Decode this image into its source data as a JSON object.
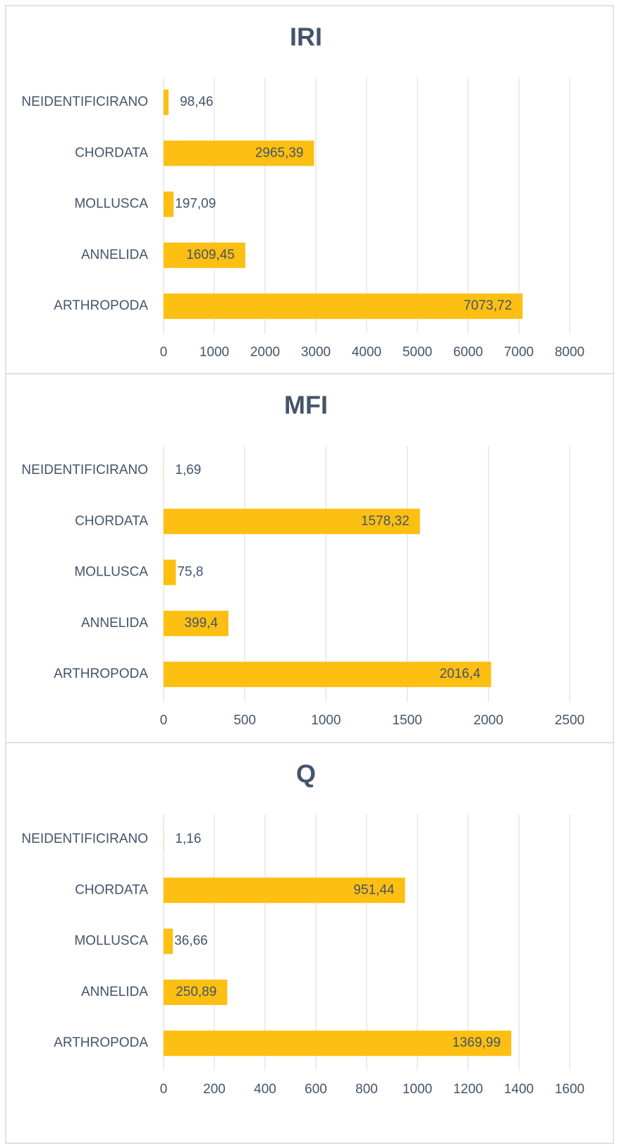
{
  "chart_data": [
    {
      "type": "bar",
      "orientation": "horizontal",
      "title": "IRI",
      "categories": [
        "NEIDENTIFICIRANO",
        "CHORDATA",
        "MOLLUSCA",
        "ANNELIDA",
        "ARTHROPODA"
      ],
      "values": [
        98.46,
        2965.39,
        197.09,
        1609.45,
        7073.72
      ],
      "value_labels": [
        "98,46",
        "2965,39",
        "197,09",
        "1609,45",
        "7073,72"
      ],
      "color": "#fcbf12",
      "xlim": [
        0,
        8000
      ],
      "xticks": [
        0,
        1000,
        2000,
        3000,
        4000,
        5000,
        6000,
        7000,
        8000
      ],
      "grid": true
    },
    {
      "type": "bar",
      "orientation": "horizontal",
      "title": "MFI",
      "categories": [
        "NEIDENTIFICIRANO",
        "CHORDATA",
        "MOLLUSCA",
        "ANNELIDA",
        "ARTHROPODA"
      ],
      "values": [
        1.69,
        1578.32,
        75.8,
        399.4,
        2016.4
      ],
      "value_labels": [
        "1,69",
        "1578,32",
        "75,8",
        "399,4",
        "2016,4"
      ],
      "color": "#fcbf12",
      "xlim": [
        0,
        2500
      ],
      "xticks": [
        0,
        500,
        1000,
        1500,
        2000,
        2500
      ],
      "grid": true
    },
    {
      "type": "bar",
      "orientation": "horizontal",
      "title": "Q",
      "categories": [
        "NEIDENTIFICIRANO",
        "CHORDATA",
        "MOLLUSCA",
        "ANNELIDA",
        "ARTHROPODA"
      ],
      "values": [
        1.16,
        951.44,
        36.66,
        250.89,
        1369.99
      ],
      "value_labels": [
        "1,16",
        "951,44",
        "36,66",
        "250,89",
        "1369,99"
      ],
      "color": "#fcbf12",
      "xlim": [
        0,
        1600
      ],
      "xticks": [
        0,
        200,
        400,
        600,
        800,
        1000,
        1200,
        1400,
        1600
      ],
      "grid": true
    }
  ]
}
